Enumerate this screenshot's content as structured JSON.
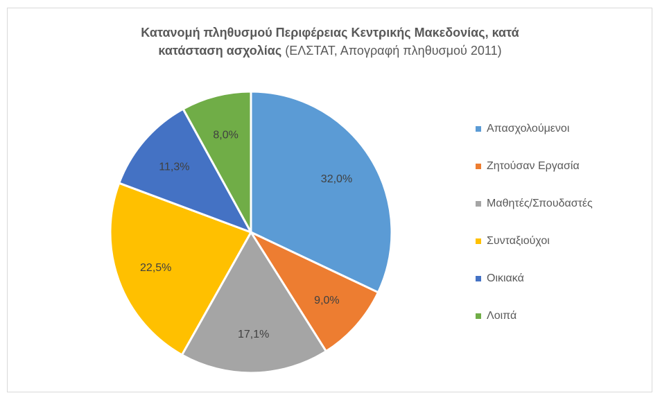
{
  "chart_data": {
    "type": "pie",
    "title_line1": "Κατανομή πληθυσμού Περιφέρειας Κεντρικής Μακεδονίας, κατά",
    "title_line2_bold": "κατάσταση ασχολίας",
    "title_line2_normal": " (ΕΛΣΤΑΤ, Απογραφή πληθυσμού 2011)",
    "legend_position": "right",
    "slices": [
      {
        "label": "Απασχολούμενοι",
        "value": 32.0,
        "display": "32,0%",
        "color": "#5b9bd5"
      },
      {
        "label": "Ζητούσαν Εργασία",
        "value": 9.0,
        "display": "9,0%",
        "color": "#ed7d31"
      },
      {
        "label": "Μαθητές/Σπουδαστές",
        "value": 17.1,
        "display": "17,1%",
        "color": "#a5a5a5"
      },
      {
        "label": "Συνταξιούχοι",
        "value": 22.5,
        "display": "22,5%",
        "color": "#ffc000"
      },
      {
        "label": "Οικιακά",
        "value": 11.3,
        "display": "11,3%",
        "color": "#4472c4"
      },
      {
        "label": "Λοιπά",
        "value": 8.0,
        "display": "8,0%",
        "color": "#70ad47"
      }
    ]
  }
}
